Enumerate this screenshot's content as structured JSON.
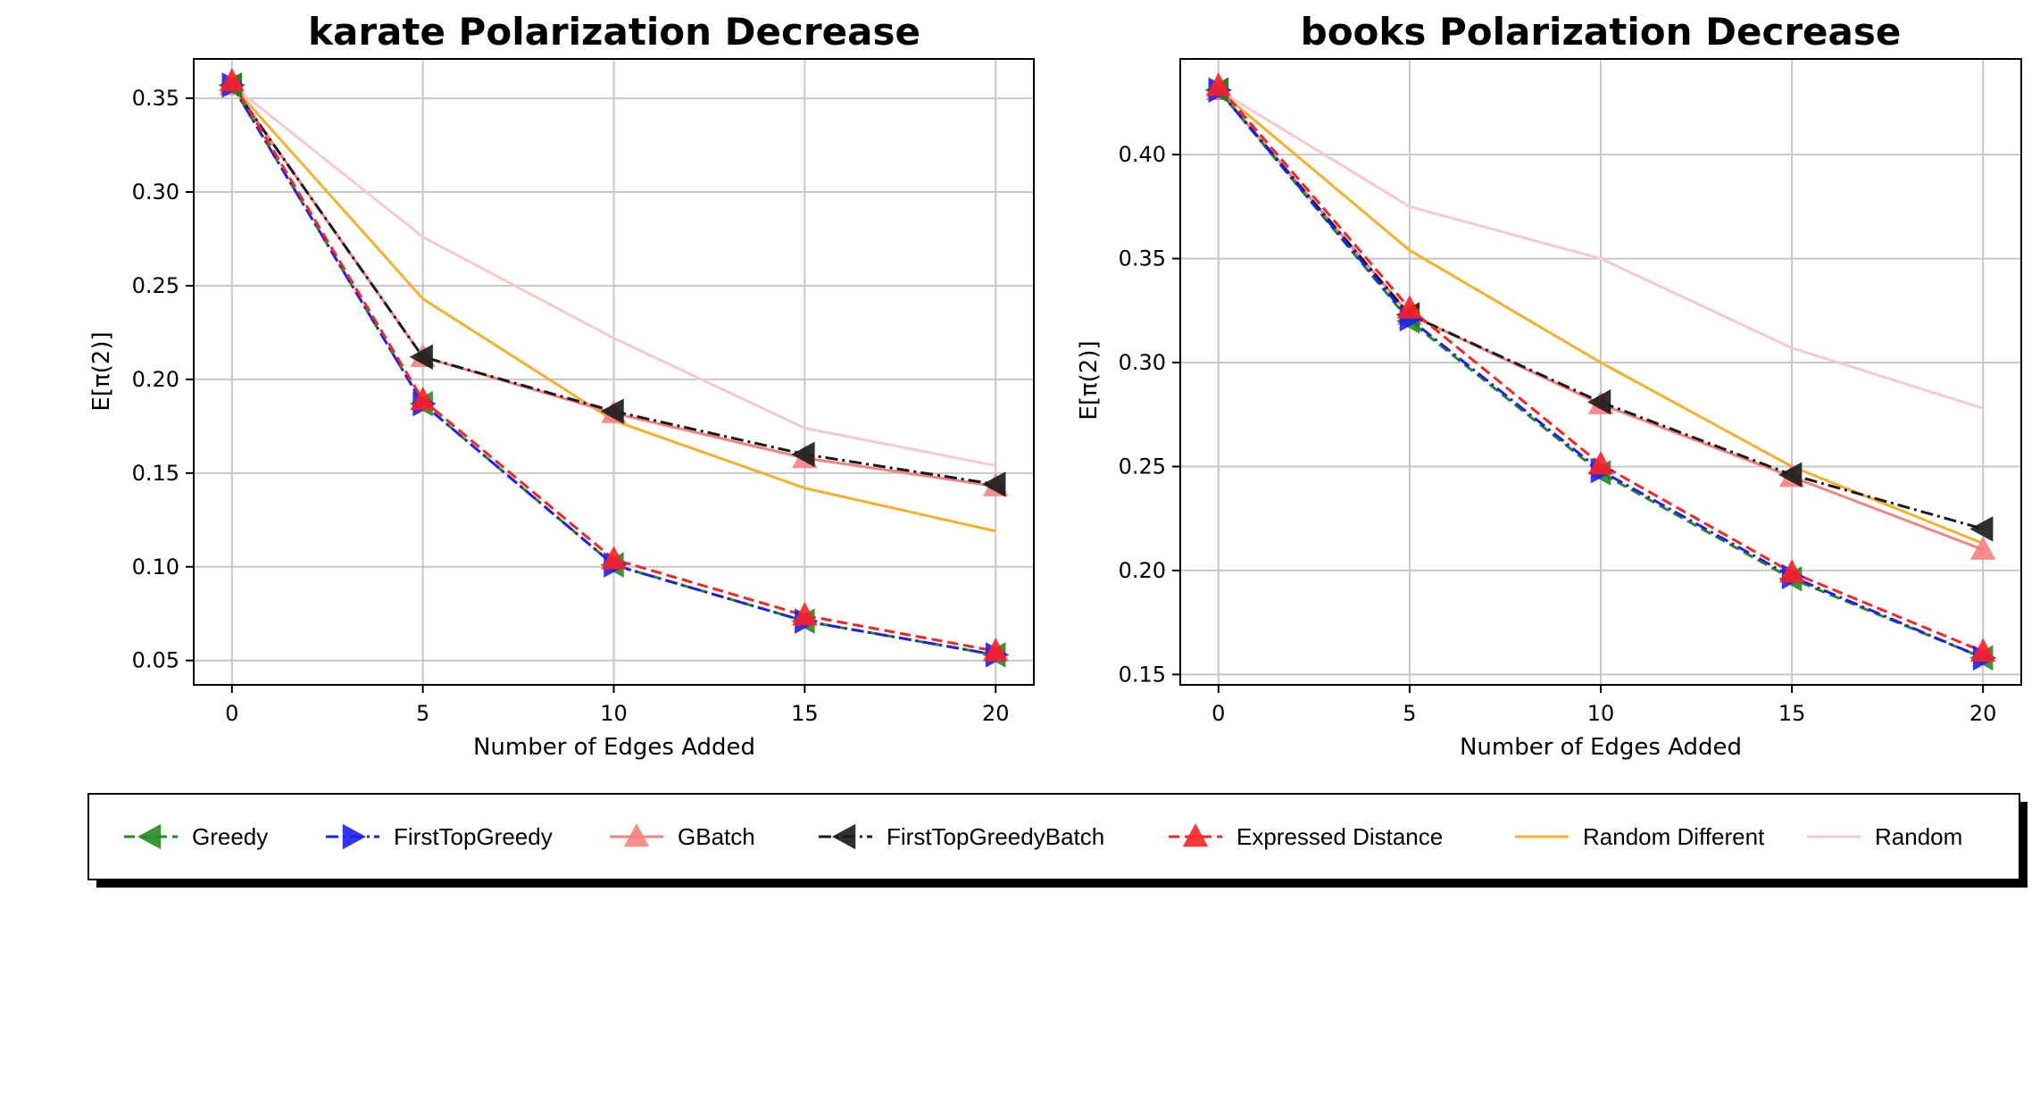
{
  "chart_data": [
    {
      "type": "line",
      "title": "karate Polarization Decrease",
      "xlabel": "Number of Edges Added",
      "ylabel": "E[π(2)]",
      "x": [
        0,
        5,
        10,
        15,
        20
      ],
      "xticks": [
        "0",
        "5",
        "10",
        "15",
        "20"
      ],
      "yticks": [
        "0.05",
        "0.10",
        "0.15",
        "0.20",
        "0.25",
        "0.30",
        "0.35"
      ],
      "xlim": [
        -1,
        21
      ],
      "ylim": [
        0.037,
        0.371
      ],
      "grid": true,
      "series": [
        {
          "name": "Random",
          "values": [
            0.357,
            0.276,
            0.222,
            0.174,
            0.154
          ]
        },
        {
          "name": "Random Different",
          "values": [
            0.357,
            0.243,
            0.178,
            0.142,
            0.119
          ]
        },
        {
          "name": "GBatch",
          "values": [
            0.357,
            0.212,
            0.182,
            0.158,
            0.143
          ]
        },
        {
          "name": "FirstTopGreedyBatch",
          "values": [
            0.357,
            0.212,
            0.183,
            0.16,
            0.144
          ]
        },
        {
          "name": "Greedy",
          "values": [
            0.357,
            0.187,
            0.101,
            0.071,
            0.053
          ]
        },
        {
          "name": "FirstTopGreedy",
          "values": [
            0.357,
            0.187,
            0.101,
            0.071,
            0.053
          ]
        },
        {
          "name": "Expressed Distance",
          "values": [
            0.359,
            0.189,
            0.104,
            0.074,
            0.055
          ]
        }
      ]
    },
    {
      "type": "line",
      "title": "books Polarization Decrease",
      "xlabel": "Number of Edges Added",
      "ylabel": "E[π(2)]",
      "x": [
        0,
        5,
        10,
        15,
        20
      ],
      "xticks": [
        "0",
        "5",
        "10",
        "15",
        "20"
      ],
      "yticks": [
        "0.15",
        "0.20",
        "0.25",
        "0.30",
        "0.35",
        "0.40"
      ],
      "xlim": [
        -1,
        21
      ],
      "ylim": [
        0.145,
        0.446
      ],
      "grid": true,
      "series": [
        {
          "name": "Random",
          "values": [
            0.431,
            0.375,
            0.35,
            0.307,
            0.278
          ]
        },
        {
          "name": "Random Different",
          "values": [
            0.431,
            0.354,
            0.3,
            0.25,
            0.213
          ]
        },
        {
          "name": "GBatch",
          "values": [
            0.431,
            0.323,
            0.28,
            0.245,
            0.21
          ]
        },
        {
          "name": "FirstTopGreedyBatch",
          "values": [
            0.431,
            0.323,
            0.281,
            0.246,
            0.22
          ]
        },
        {
          "name": "Greedy",
          "values": [
            0.431,
            0.32,
            0.247,
            0.196,
            0.158
          ]
        },
        {
          "name": "FirstTopGreedy",
          "values": [
            0.431,
            0.321,
            0.248,
            0.197,
            0.158
          ]
        },
        {
          "name": "Expressed Distance",
          "values": [
            0.433,
            0.326,
            0.251,
            0.199,
            0.161
          ]
        }
      ]
    }
  ],
  "legend": {
    "placement": "bottom",
    "items": [
      {
        "label": "Greedy",
        "color": "#228b22",
        "marker": "triangle-left",
        "line": "dashed"
      },
      {
        "label": "FirstTopGreedy",
        "color": "#1f1ff0",
        "marker": "triangle-right",
        "line": "dashdot"
      },
      {
        "label": "GBatch",
        "color": "#f88080",
        "marker": "triangle-up",
        "line": "solid"
      },
      {
        "label": "FirstTopGreedyBatch",
        "color": "#1a1a1a",
        "marker": "triangle-left",
        "line": "dashdot"
      },
      {
        "label": "Expressed Distance",
        "color": "#ff2020",
        "marker": "triangle-up",
        "line": "dashed"
      },
      {
        "label": "Random Different",
        "color": "#f7b02c",
        "marker": "none",
        "line": "solid"
      },
      {
        "label": "Random",
        "color": "#f8c8d0",
        "marker": "none",
        "line": "solid"
      }
    ]
  }
}
